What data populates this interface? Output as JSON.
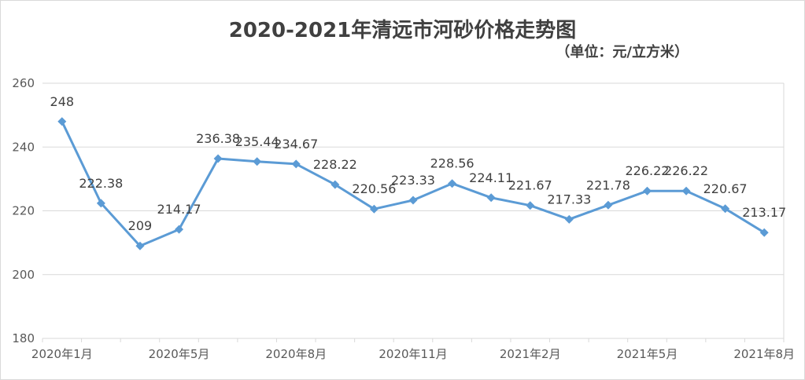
{
  "chart_data": {
    "type": "line",
    "title": "2020-2021年清远市河砂价格走势图",
    "subtitle": "（单位：元/立方米）",
    "xlabel": "",
    "ylabel": "",
    "ylim": [
      180,
      260
    ],
    "yticks": [
      180,
      200,
      220,
      240,
      260
    ],
    "grid": true,
    "x_tick_labels": [
      "2020年1月",
      "2020年5月",
      "2020年8月",
      "2020年11月",
      "2021年2月",
      "2021年5月",
      "2021年8月"
    ],
    "series": [
      {
        "name": "",
        "values": [
          248,
          222.38,
          209,
          214.17,
          236.38,
          235.44,
          234.67,
          228.22,
          220.56,
          223.33,
          228.56,
          224.11,
          221.67,
          217.33,
          221.78,
          226.22,
          226.22,
          220.67,
          213.17
        ],
        "labels": [
          "248",
          "222.38",
          "209",
          "214.17",
          "236.38",
          "235.44",
          "234.67",
          "228.22",
          "220.56",
          "223.33",
          "228.56",
          "224.11",
          "221.67",
          "217.33",
          "221.78",
          "226.22",
          "226.22",
          "220.67",
          "213.17"
        ]
      }
    ],
    "line_color": "#5b9bd5",
    "grid_color": "#d9d9d9"
  }
}
